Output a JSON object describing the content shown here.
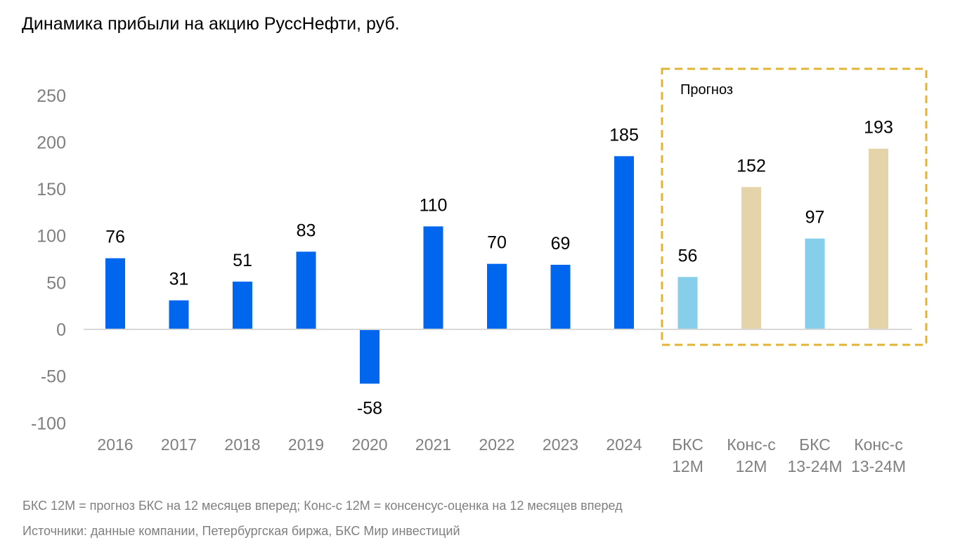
{
  "title": "Динамика прибыли на акцию РуссНефти, руб.",
  "forecast_label": "Прогноз",
  "footnotes": [
    "БКС 12M = прогноз БКС на 12 месяцев вперед; Конс-с 12M = консенсус-оценка на 12 месяцев вперед",
    "Источники: данные компании, Петербургская биржа, БКС Мир инвестиций"
  ],
  "colors": {
    "actual": "#0066EE",
    "bcs_forecast": "#87CEEB",
    "consensus_forecast": "#E5D3AA",
    "forecast_box": "#E0B43A",
    "axis_text": "#7f7f7f"
  },
  "chart_data": {
    "type": "bar",
    "title": "Динамика прибыли на акцию РуссНефти, руб.",
    "categories": [
      [
        "2016"
      ],
      [
        "2017"
      ],
      [
        "2018"
      ],
      [
        "2019"
      ],
      [
        "2020"
      ],
      [
        "2021"
      ],
      [
        "2022"
      ],
      [
        "2023"
      ],
      [
        "2024"
      ],
      [
        "БКС",
        "12M"
      ],
      [
        "Конс-с",
        "12M"
      ],
      [
        "БКС",
        "13-24M"
      ],
      [
        "Конс-с",
        "13-24M"
      ]
    ],
    "values": [
      76,
      31,
      51,
      83,
      -58,
      110,
      70,
      69,
      185,
      56,
      152,
      97,
      193
    ],
    "data_labels": [
      "76",
      "31",
      "51",
      "83",
      "-58",
      "110",
      "70",
      "69",
      "185",
      "56",
      "152",
      "97",
      "193"
    ],
    "bar_kind": [
      "actual",
      "actual",
      "actual",
      "actual",
      "actual",
      "actual",
      "actual",
      "actual",
      "actual",
      "bcs_forecast",
      "consensus_forecast",
      "bcs_forecast",
      "consensus_forecast"
    ],
    "y_ticks": [
      "250",
      "200",
      "150",
      "100",
      "50",
      "0",
      "-50",
      "-100"
    ],
    "ylim": [
      -100,
      250
    ],
    "xlabel": "",
    "ylabel": "",
    "grid": false,
    "legend": "none"
  }
}
